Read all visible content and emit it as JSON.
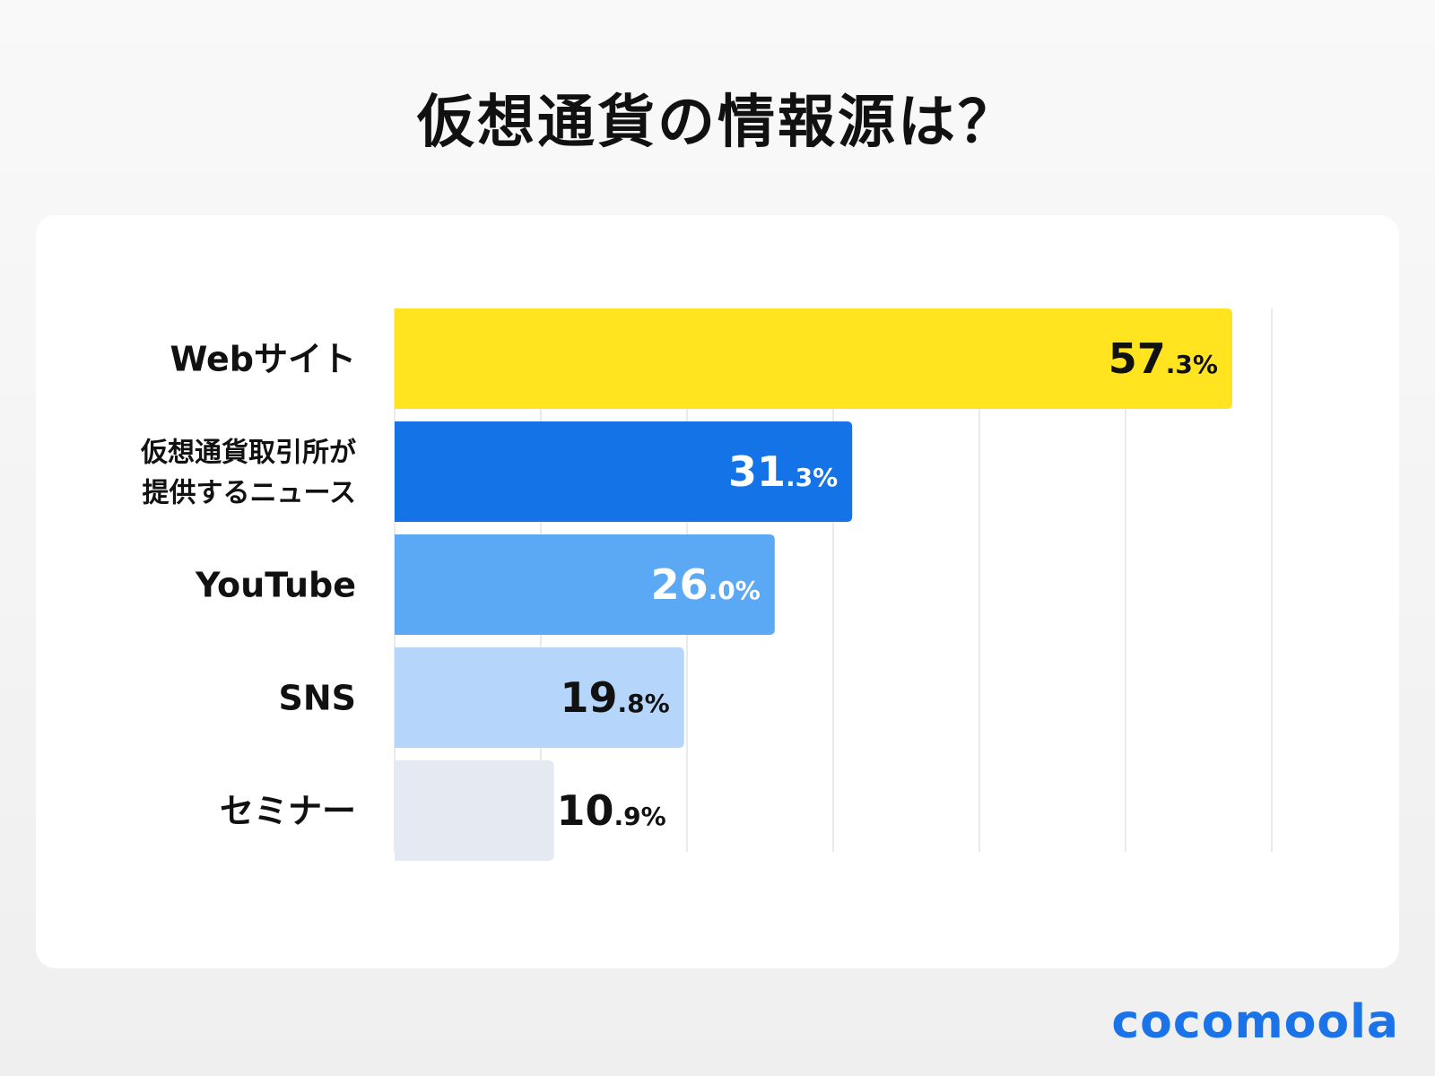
{
  "title": "仮想通貨の情報源は？",
  "brand": "cocomoola",
  "chart_data": {
    "type": "bar",
    "orientation": "horizontal",
    "title": "仮想通貨の情報源は？",
    "xlabel": "",
    "ylabel": "",
    "xlim": [
      0,
      60
    ],
    "grid": true,
    "value_suffix": "%",
    "categories": [
      "Webサイト",
      "仮想通貨取引所が\n提供するニュース",
      "YouTube",
      "SNS",
      "セミナー"
    ],
    "values": [
      57.3,
      31.3,
      26.0,
      19.8,
      10.9
    ],
    "colors": [
      "#ffe41f",
      "#1473e6",
      "#5ba8f5",
      "#b5d6fa",
      "#e4e9f2"
    ],
    "label_colors": [
      "#111111",
      "#ffffff",
      "#ffffff",
      "#111111",
      "#111111"
    ],
    "label_inside": [
      true,
      true,
      true,
      true,
      false
    ]
  }
}
